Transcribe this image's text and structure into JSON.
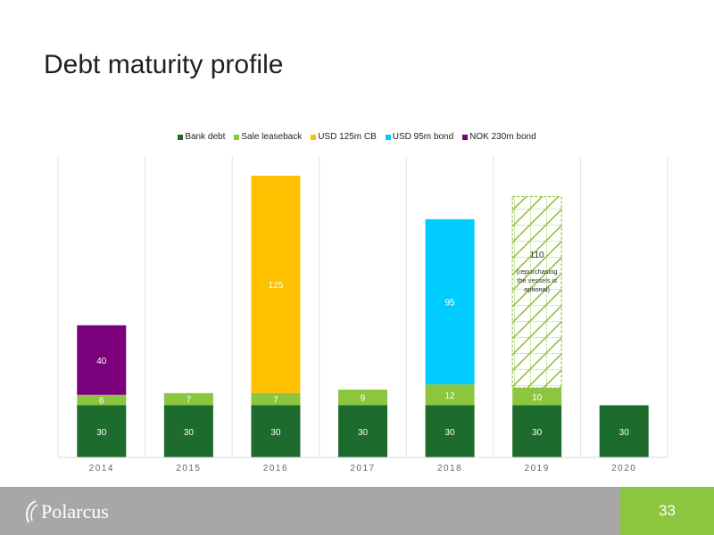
{
  "slide": {
    "title": "Debt maturity profile",
    "page_number": "33"
  },
  "footer": {
    "logo_text": "Polarcus"
  },
  "chart_data": {
    "type": "bar",
    "stacked": true,
    "categories": [
      "2014",
      "2015",
      "2016",
      "2017",
      "2018",
      "2019",
      "2020"
    ],
    "series": [
      {
        "name": "Bank debt",
        "color": "#1e6b2e",
        "values": [
          30,
          30,
          30,
          30,
          30,
          30,
          30
        ]
      },
      {
        "name": "Sale leaseback",
        "color": "#8cc63f",
        "values": [
          6,
          7,
          7,
          9,
          12,
          10,
          null
        ]
      },
      {
        "name": "USD 125m CB",
        "color": "#ffc000",
        "values": [
          null,
          null,
          125,
          null,
          null,
          null,
          null
        ]
      },
      {
        "name": "USD 95m bond",
        "color": "#00ccff",
        "values": [
          null,
          null,
          null,
          null,
          95,
          null,
          null
        ]
      },
      {
        "name": "NOK 230m bond",
        "color": "#7b007b",
        "values": [
          40,
          null,
          null,
          null,
          null,
          null,
          null
        ]
      }
    ],
    "annotations": [
      {
        "category": "2019",
        "value": 110,
        "label": "110",
        "note": "(repurchasing the vessels is optional)",
        "fill": "hatched",
        "color": "#8cc63f"
      }
    ],
    "legend_position": "top-center",
    "grid": "vertical category separators",
    "ylim": [
      0,
      190
    ]
  }
}
